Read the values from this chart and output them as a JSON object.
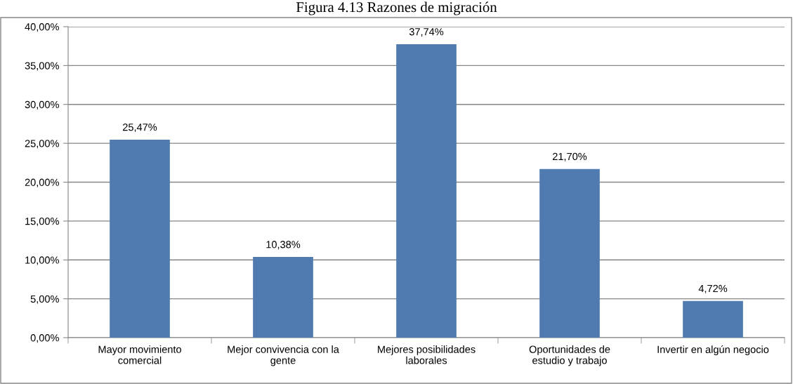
{
  "chart_data": {
    "type": "bar",
    "title": "Figura 4.13 Razones de migración",
    "categories": [
      "Mayor movimiento\ncomercial",
      "Mejor convivencia con la\ngente",
      "Mejores posibilidades\nlaborales",
      "Oportunidades de\nestudio y trabajo",
      "Invertir en algún negocio"
    ],
    "values": [
      25.47,
      10.38,
      37.74,
      21.7,
      4.72
    ],
    "value_labels": [
      "25,47%",
      "10,38%",
      "37,74%",
      "21,70%",
      "4,72%"
    ],
    "color": "#4f7bb0",
    "ylim": [
      0,
      40
    ],
    "yticks": [
      {
        "value": 0,
        "label": "0,00%"
      },
      {
        "value": 5,
        "label": "5,00%"
      },
      {
        "value": 10,
        "label": "10,00%"
      },
      {
        "value": 15,
        "label": "15,00%"
      },
      {
        "value": 20,
        "label": "20,00%"
      },
      {
        "value": 25,
        "label": "25,00%"
      },
      {
        "value": 30,
        "label": "30,00%"
      },
      {
        "value": 35,
        "label": "35,00%"
      },
      {
        "value": 40,
        "label": "40,00%"
      }
    ],
    "grid": "y"
  }
}
